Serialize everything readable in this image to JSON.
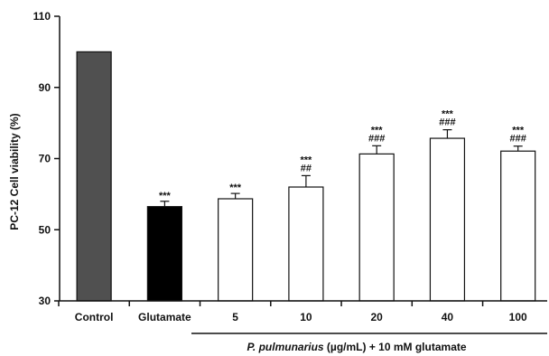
{
  "chart_data": {
    "type": "bar",
    "title": "",
    "xlabel": "",
    "ylabel": "PC-12 Cell viability (%)",
    "ylim": [
      30,
      110
    ],
    "yticks": [
      30,
      50,
      70,
      90,
      110
    ],
    "categories": [
      "Control",
      "Glutamate",
      "5",
      "10",
      "20",
      "40",
      "100"
    ],
    "values": [
      100,
      56.5,
      58.7,
      62.0,
      71.3,
      75.7,
      72.1
    ],
    "errors": [
      0,
      1.5,
      1.5,
      3.2,
      2.3,
      2.4,
      1.4
    ],
    "significance_star": [
      "",
      "***",
      "***",
      "***",
      "***",
      "***",
      "***"
    ],
    "significance_hash": [
      "",
      "",
      "",
      "##",
      "###",
      "###",
      "###"
    ],
    "bar_colors": [
      "#505050",
      "#000000",
      "#ffffff",
      "#ffffff",
      "#ffffff",
      "#ffffff",
      "#ffffff"
    ],
    "group_label": {
      "italic": "P. pulmunarius",
      "rest": " (µg/mL) + 10 mM glutamate"
    },
    "grid": false
  }
}
